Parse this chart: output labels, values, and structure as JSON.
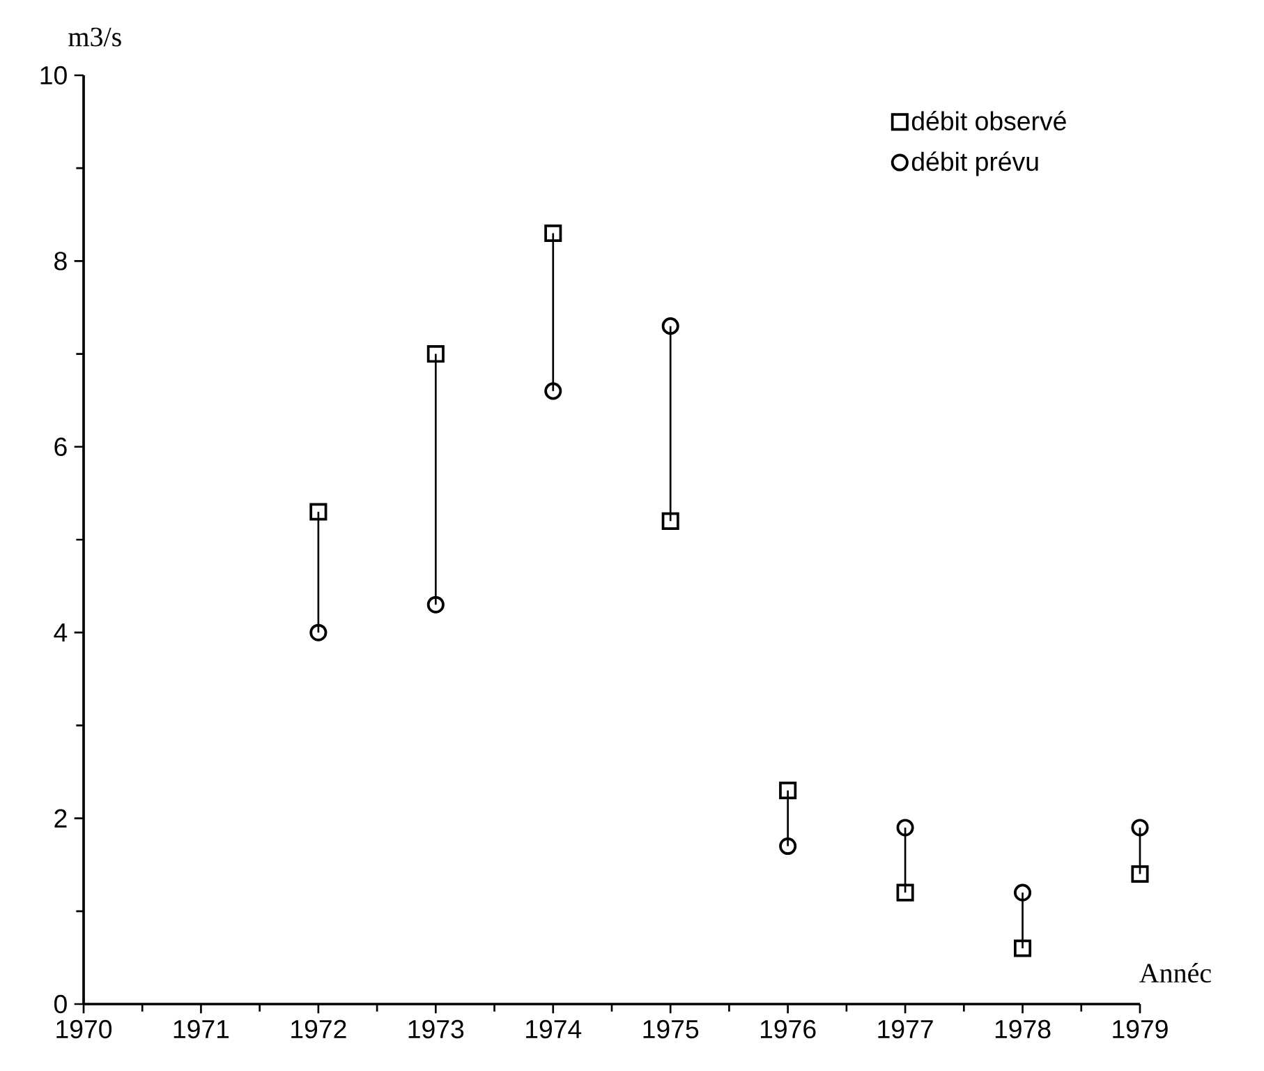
{
  "chart_data": {
    "type": "scatter",
    "xlabel": "Annéc",
    "ylabel": "m3/s",
    "x": [
      1972,
      1973,
      1974,
      1975,
      1976,
      1977,
      1978,
      1979
    ],
    "xlim": [
      1970,
      1979
    ],
    "xticks": [
      1970,
      1971,
      1972,
      1973,
      1974,
      1975,
      1976,
      1977,
      1978,
      1979
    ],
    "ylim": [
      0,
      10
    ],
    "yticks": [
      0,
      2,
      4,
      6,
      8,
      10
    ],
    "legend": "top right",
    "grid": false,
    "series": [
      {
        "name": "débit observé",
        "color": "#000000",
        "marker": "square",
        "values": [
          5.3,
          7.0,
          8.3,
          5.2,
          2.3,
          1.2,
          0.6,
          1.4
        ],
        "errors": [
          [
            4.0,
            5.3
          ],
          [
            4.3,
            7.0
          ],
          [
            6.6,
            8.3
          ],
          [
            5.2,
            7.3
          ],
          [
            1.7,
            2.3
          ],
          [
            1.2,
            1.9
          ],
          [
            0.6,
            1.2
          ],
          [
            1.4,
            1.9
          ]
        ]
      },
      {
        "name": "débit prévu",
        "color": "#000000",
        "marker": "circle",
        "values": [
          4.0,
          4.3,
          6.6,
          7.3,
          1.7,
          1.9,
          1.2,
          1.9
        ]
      }
    ]
  }
}
